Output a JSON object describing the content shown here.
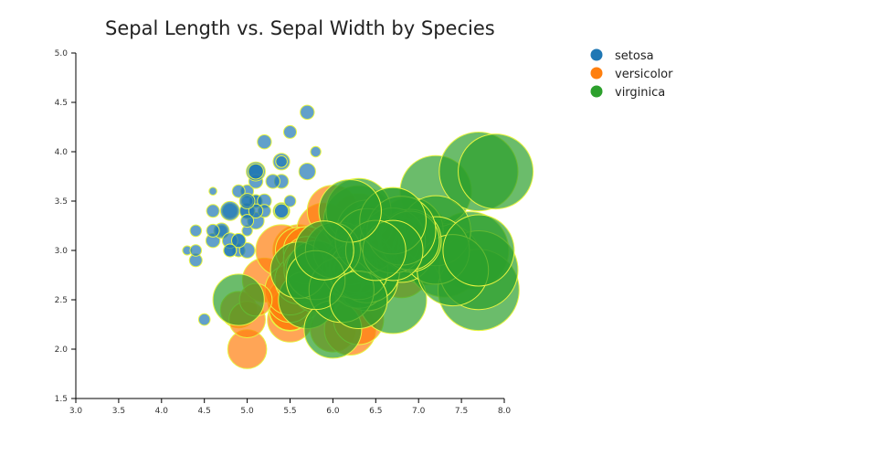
{
  "chart_data": {
    "type": "scatter",
    "title": "Sepal Length vs. Sepal Width by Species",
    "xlabel": "",
    "ylabel": "",
    "xlim": [
      3.0,
      8.0
    ],
    "ylim": [
      1.5,
      5.0
    ],
    "x_ticks": [
      "3.0",
      "3.5",
      "4.0",
      "4.5",
      "5.0",
      "5.5",
      "6.0",
      "6.5",
      "7.0",
      "7.5",
      "8.0"
    ],
    "y_ticks": [
      "1.5",
      "2.0",
      "2.5",
      "3.0",
      "3.5",
      "4.0",
      "4.5",
      "5.0"
    ],
    "grid": false,
    "legend_position": "top-right",
    "marker_outline_color": "#e8f542",
    "series": [
      {
        "name": "setosa",
        "color": "#1f77b4",
        "points": [
          [
            5.1,
            3.5,
            1.4
          ],
          [
            4.9,
            3.0,
            1.4
          ],
          [
            4.7,
            3.2,
            1.3
          ],
          [
            4.6,
            3.1,
            1.5
          ],
          [
            5.0,
            3.6,
            1.4
          ],
          [
            5.4,
            3.9,
            1.7
          ],
          [
            4.6,
            3.4,
            1.4
          ],
          [
            5.0,
            3.4,
            1.5
          ],
          [
            4.4,
            2.9,
            1.4
          ],
          [
            4.9,
            3.1,
            1.5
          ],
          [
            5.4,
            3.7,
            1.5
          ],
          [
            4.8,
            3.4,
            1.6
          ],
          [
            4.8,
            3.0,
            1.4
          ],
          [
            4.3,
            3.0,
            1.1
          ],
          [
            5.8,
            4.0,
            1.2
          ],
          [
            5.7,
            4.4,
            1.5
          ],
          [
            5.4,
            3.9,
            1.3
          ],
          [
            5.1,
            3.5,
            1.4
          ],
          [
            5.7,
            3.8,
            1.7
          ],
          [
            5.1,
            3.8,
            1.5
          ],
          [
            5.4,
            3.4,
            1.7
          ],
          [
            5.1,
            3.7,
            1.5
          ],
          [
            4.6,
            3.6,
            1.0
          ],
          [
            5.1,
            3.3,
            1.7
          ],
          [
            4.8,
            3.4,
            1.9
          ],
          [
            5.0,
            3.0,
            1.6
          ],
          [
            5.0,
            3.4,
            1.6
          ],
          [
            5.2,
            3.5,
            1.5
          ],
          [
            5.2,
            3.4,
            1.4
          ],
          [
            4.7,
            3.2,
            1.6
          ],
          [
            4.8,
            3.1,
            1.6
          ],
          [
            5.4,
            3.4,
            1.5
          ],
          [
            5.2,
            4.1,
            1.5
          ],
          [
            5.5,
            4.2,
            1.4
          ],
          [
            4.9,
            3.1,
            1.5
          ],
          [
            5.0,
            3.2,
            1.2
          ],
          [
            5.5,
            3.5,
            1.3
          ],
          [
            4.9,
            3.6,
            1.4
          ],
          [
            4.4,
            3.0,
            1.3
          ],
          [
            5.1,
            3.4,
            1.5
          ],
          [
            5.0,
            3.5,
            1.3
          ],
          [
            4.5,
            2.3,
            1.3
          ],
          [
            4.4,
            3.2,
            1.3
          ],
          [
            5.0,
            3.5,
            1.6
          ],
          [
            5.1,
            3.8,
            1.9
          ],
          [
            4.8,
            3.0,
            1.4
          ],
          [
            5.1,
            3.8,
            1.6
          ],
          [
            4.6,
            3.2,
            1.4
          ],
          [
            5.3,
            3.7,
            1.5
          ],
          [
            5.0,
            3.3,
            1.4
          ]
        ]
      },
      {
        "name": "versicolor",
        "color": "#ff7f0e",
        "points": [
          [
            7.0,
            3.2,
            4.7
          ],
          [
            6.4,
            3.2,
            4.5
          ],
          [
            6.9,
            3.1,
            4.9
          ],
          [
            5.5,
            2.3,
            4.0
          ],
          [
            6.5,
            2.8,
            4.6
          ],
          [
            5.7,
            2.8,
            4.5
          ],
          [
            6.3,
            3.3,
            4.7
          ],
          [
            4.9,
            2.4,
            3.3
          ],
          [
            6.6,
            2.9,
            4.6
          ],
          [
            5.2,
            2.7,
            3.9
          ],
          [
            5.0,
            2.0,
            3.5
          ],
          [
            5.9,
            3.0,
            4.2
          ],
          [
            6.0,
            2.2,
            4.0
          ],
          [
            6.1,
            2.9,
            4.7
          ],
          [
            5.6,
            2.9,
            3.6
          ],
          [
            6.7,
            3.1,
            4.4
          ],
          [
            5.6,
            3.0,
            4.5
          ],
          [
            5.8,
            2.7,
            4.1
          ],
          [
            6.2,
            2.2,
            4.5
          ],
          [
            5.6,
            2.5,
            3.9
          ],
          [
            5.9,
            3.2,
            4.8
          ],
          [
            6.1,
            2.8,
            4.0
          ],
          [
            6.3,
            2.5,
            4.9
          ],
          [
            6.1,
            2.8,
            4.7
          ],
          [
            6.4,
            2.9,
            4.3
          ],
          [
            6.6,
            3.0,
            4.4
          ],
          [
            6.8,
            2.8,
            4.8
          ],
          [
            6.7,
            3.0,
            5.0
          ],
          [
            6.0,
            2.9,
            4.5
          ],
          [
            5.7,
            2.6,
            3.5
          ],
          [
            5.5,
            2.4,
            3.8
          ],
          [
            5.5,
            2.4,
            3.7
          ],
          [
            5.8,
            2.7,
            3.9
          ],
          [
            6.0,
            2.7,
            5.1
          ],
          [
            5.4,
            3.0,
            4.5
          ],
          [
            6.0,
            3.4,
            4.5
          ],
          [
            6.7,
            3.1,
            4.7
          ],
          [
            6.3,
            2.3,
            4.4
          ],
          [
            5.6,
            3.0,
            4.1
          ],
          [
            5.5,
            2.5,
            4.0
          ],
          [
            5.5,
            2.6,
            4.4
          ],
          [
            6.1,
            3.0,
            4.6
          ],
          [
            5.8,
            2.6,
            4.0
          ],
          [
            5.0,
            2.3,
            3.3
          ],
          [
            5.6,
            2.7,
            4.2
          ],
          [
            5.7,
            3.0,
            4.2
          ],
          [
            5.7,
            2.9,
            4.2
          ],
          [
            6.2,
            2.9,
            4.3
          ],
          [
            5.1,
            2.5,
            3.0
          ],
          [
            5.7,
            2.8,
            4.1
          ]
        ]
      },
      {
        "name": "virginica",
        "color": "#2ca02c",
        "points": [
          [
            6.3,
            3.3,
            6.0
          ],
          [
            5.8,
            2.7,
            5.1
          ],
          [
            7.1,
            3.0,
            5.9
          ],
          [
            6.3,
            2.9,
            5.6
          ],
          [
            6.5,
            3.0,
            5.8
          ],
          [
            7.6,
            3.0,
            6.6
          ],
          [
            4.9,
            2.5,
            4.5
          ],
          [
            7.3,
            2.9,
            6.3
          ],
          [
            6.7,
            2.5,
            5.8
          ],
          [
            7.2,
            3.6,
            6.1
          ],
          [
            6.5,
            3.2,
            5.1
          ],
          [
            6.4,
            2.7,
            5.3
          ],
          [
            6.8,
            3.0,
            5.5
          ],
          [
            5.7,
            2.5,
            5.0
          ],
          [
            5.8,
            2.8,
            5.1
          ],
          [
            6.4,
            3.2,
            5.3
          ],
          [
            6.5,
            3.0,
            5.5
          ],
          [
            7.7,
            3.8,
            6.7
          ],
          [
            7.7,
            2.6,
            6.9
          ],
          [
            6.0,
            2.2,
            5.0
          ],
          [
            6.9,
            3.2,
            5.7
          ],
          [
            5.6,
            2.8,
            4.9
          ],
          [
            7.7,
            2.8,
            6.7
          ],
          [
            6.3,
            2.7,
            4.9
          ],
          [
            6.7,
            3.3,
            5.7
          ],
          [
            7.2,
            3.2,
            6.0
          ],
          [
            6.2,
            2.8,
            4.8
          ],
          [
            6.1,
            3.0,
            4.9
          ],
          [
            6.4,
            2.8,
            5.6
          ],
          [
            7.2,
            3.0,
            5.8
          ],
          [
            7.4,
            2.8,
            6.1
          ],
          [
            7.9,
            3.8,
            6.4
          ],
          [
            6.4,
            2.8,
            5.6
          ],
          [
            6.3,
            2.8,
            5.1
          ],
          [
            6.1,
            2.6,
            5.6
          ],
          [
            7.7,
            3.0,
            6.1
          ],
          [
            6.3,
            3.4,
            5.6
          ],
          [
            6.4,
            3.1,
            5.5
          ],
          [
            6.0,
            3.0,
            4.8
          ],
          [
            6.9,
            3.1,
            5.4
          ],
          [
            6.7,
            3.1,
            5.6
          ],
          [
            6.9,
            3.1,
            5.1
          ],
          [
            5.8,
            2.7,
            5.1
          ],
          [
            6.8,
            3.2,
            5.9
          ],
          [
            6.7,
            3.3,
            5.7
          ],
          [
            6.7,
            3.0,
            5.2
          ],
          [
            6.3,
            2.5,
            5.0
          ],
          [
            6.5,
            3.0,
            5.2
          ],
          [
            6.2,
            3.4,
            5.4
          ],
          [
            5.9,
            3.0,
            5.1
          ]
        ]
      }
    ]
  }
}
